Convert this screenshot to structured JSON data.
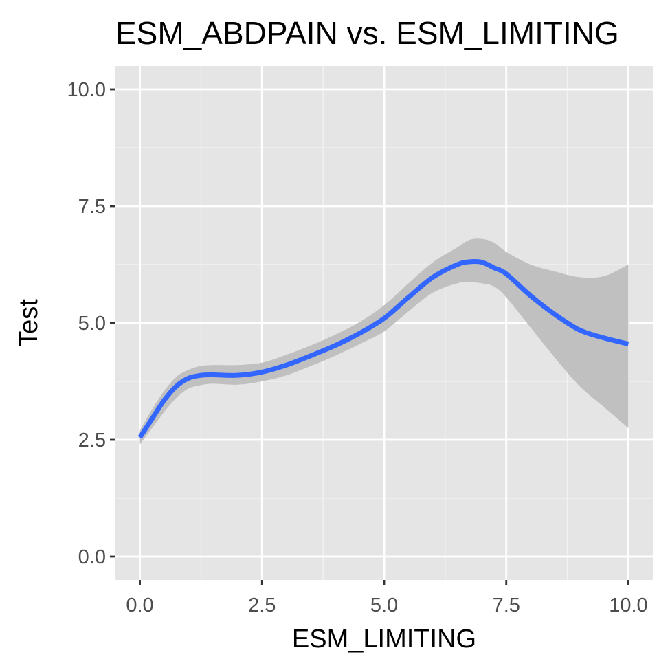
{
  "chart_data": {
    "type": "line",
    "title": "ESM_ABDPAIN vs. ESM_LIMITING",
    "xlabel": "ESM_LIMITING",
    "ylabel": "Test",
    "xlim": [
      -0.5,
      10.5
    ],
    "ylim": [
      -0.5,
      10.5
    ],
    "x_ticks": [
      0.0,
      2.5,
      5.0,
      7.5,
      10.0
    ],
    "x_tick_labels": [
      "0.0",
      "2.5",
      "5.0",
      "7.5",
      "10.0"
    ],
    "y_ticks": [
      0.0,
      2.5,
      5.0,
      7.5,
      10.0
    ],
    "y_tick_labels": [
      "0.0",
      "2.5",
      "5.0",
      "7.5",
      "10.0"
    ],
    "grid": true,
    "legend": "none",
    "series": [
      {
        "style": "smooth-line-with-confidence-band",
        "color": "#3366FF",
        "band_color": "#BEBEBE",
        "x": [
          0.0,
          0.25,
          0.5,
          0.75,
          1.0,
          1.25,
          1.5,
          2.0,
          2.5,
          3.0,
          3.5,
          4.0,
          4.5,
          5.0,
          5.5,
          6.0,
          6.5,
          6.75,
          7.0,
          7.25,
          7.5,
          8.0,
          8.5,
          9.0,
          9.5,
          10.0
        ],
        "y": [
          2.55,
          2.95,
          3.35,
          3.65,
          3.82,
          3.88,
          3.89,
          3.88,
          3.95,
          4.1,
          4.3,
          4.52,
          4.78,
          5.1,
          5.55,
          5.98,
          6.25,
          6.31,
          6.3,
          6.18,
          6.05,
          5.58,
          5.18,
          4.85,
          4.68,
          4.55
        ],
        "lower": [
          2.4,
          2.75,
          3.1,
          3.4,
          3.6,
          3.67,
          3.7,
          3.68,
          3.75,
          3.88,
          4.08,
          4.3,
          4.55,
          4.82,
          5.25,
          5.65,
          5.85,
          5.87,
          5.85,
          5.78,
          5.55,
          4.9,
          4.25,
          3.65,
          3.2,
          2.75
        ],
        "upper": [
          2.7,
          3.15,
          3.55,
          3.85,
          4.0,
          4.08,
          4.1,
          4.1,
          4.15,
          4.32,
          4.52,
          4.75,
          5.02,
          5.38,
          5.85,
          6.3,
          6.62,
          6.78,
          6.8,
          6.72,
          6.52,
          6.25,
          6.1,
          5.98,
          6.0,
          6.25
        ]
      }
    ]
  },
  "colors": {
    "panel_background": "#E5E5E5",
    "grid_major": "#FFFFFF",
    "grid_minor": "#F2F2F2",
    "tick_text": "#4D4D4D",
    "tick_mark": "#333333"
  }
}
